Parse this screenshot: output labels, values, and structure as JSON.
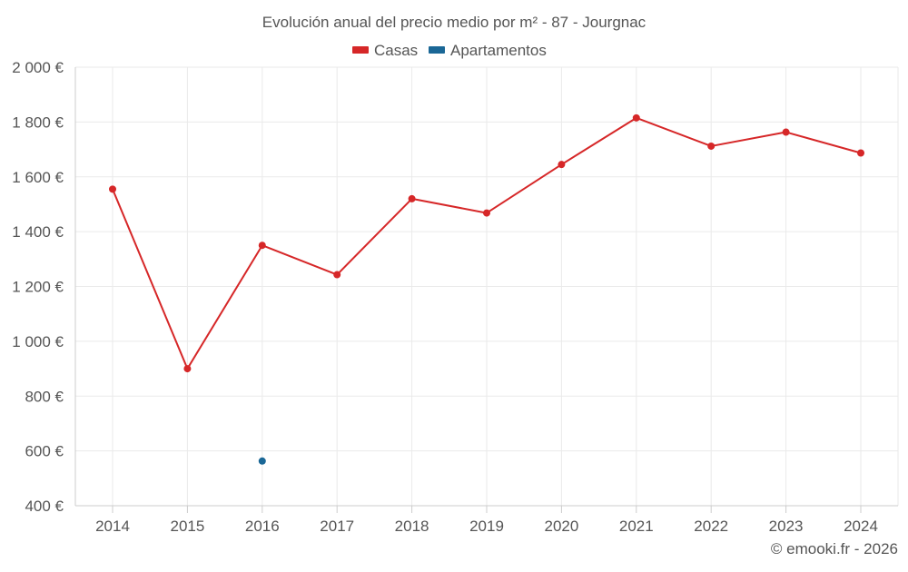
{
  "chart_data": {
    "type": "line",
    "title": "Evolución anual del precio medio por m² - 87 - Jourgnac",
    "categories": [
      "2014",
      "2015",
      "2016",
      "2017",
      "2018",
      "2019",
      "2020",
      "2021",
      "2022",
      "2023",
      "2024"
    ],
    "y_tick_labels": [
      "400 €",
      "600 €",
      "800 €",
      "1 000 €",
      "1 200 €",
      "1 400 €",
      "1 600 €",
      "1 800 €",
      "2 000 €"
    ],
    "y_ticks": [
      400,
      600,
      800,
      1000,
      1200,
      1400,
      1600,
      1800,
      2000
    ],
    "ylim": [
      400,
      2000
    ],
    "grid": true,
    "legend_position": "top-center",
    "series": [
      {
        "name": "Casas",
        "color": "#d62728",
        "values": [
          1555,
          900,
          1350,
          1243,
          1520,
          1468,
          1645,
          1815,
          1712,
          1763,
          1687
        ]
      },
      {
        "name": "Apartamentos",
        "color": "#1a6796",
        "values": [
          null,
          null,
          563,
          null,
          null,
          null,
          null,
          null,
          null,
          null,
          null
        ]
      }
    ],
    "credit": "© emooki.fr - 2026"
  },
  "colors": {
    "grid": "#eaeaea",
    "axis": "#cccccc",
    "text": "#555555"
  }
}
